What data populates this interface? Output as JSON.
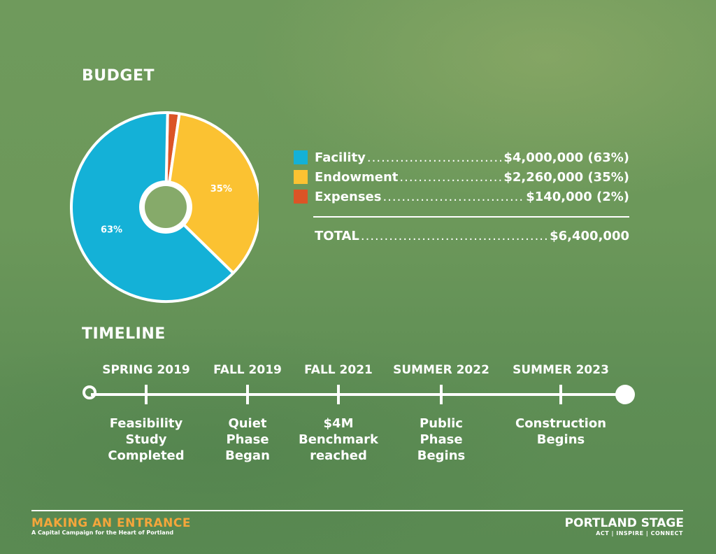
{
  "budget": {
    "heading": "BUDGET",
    "items": [
      {
        "name": "Facility",
        "value": "$4,000,000 (63%)",
        "color": "#14b1d7"
      },
      {
        "name": "Endowment",
        "value": "$2,260,000 (35%)",
        "color": "#fbc232"
      },
      {
        "name": "Expenses",
        "value": "$140,000 (2%)",
        "color": "#db5426"
      }
    ],
    "total_label": "TOTAL",
    "total_value": "$6,400,000"
  },
  "chart_data": {
    "type": "pie",
    "labels": [
      "Facility",
      "Endowment",
      "Expenses"
    ],
    "values": [
      63,
      35,
      2
    ],
    "value_labels": [
      "63%",
      "35%",
      "2%"
    ],
    "colors": [
      "#14b1d7",
      "#fbc232",
      "#db5426"
    ],
    "center_color": "#86aa6a"
  },
  "timeline": {
    "heading": "TIMELINE",
    "events": [
      {
        "date": "SPRING 2019",
        "description": "Feasibility\nStudy\nCompleted"
      },
      {
        "date": "FALL 2019",
        "description": "Quiet\nPhase\nBegan"
      },
      {
        "date": "FALL 2021",
        "description": "$4M\nBenchmark\nreached"
      },
      {
        "date": "SUMMER 2022",
        "description": "Public\nPhase\nBegins"
      },
      {
        "date": "SUMMER 2023",
        "description": "Construction\nBegins"
      }
    ]
  },
  "footer": {
    "campaign_title": "MAKING AN ENTRANCE",
    "campaign_subtitle": "A Capital Campaign for the Heart of Portland",
    "brand_name": "PORTLAND STAGE",
    "brand_tagline": "ACT | INSPIRE | CONNECT",
    "accent_color": "#f4a63b"
  }
}
